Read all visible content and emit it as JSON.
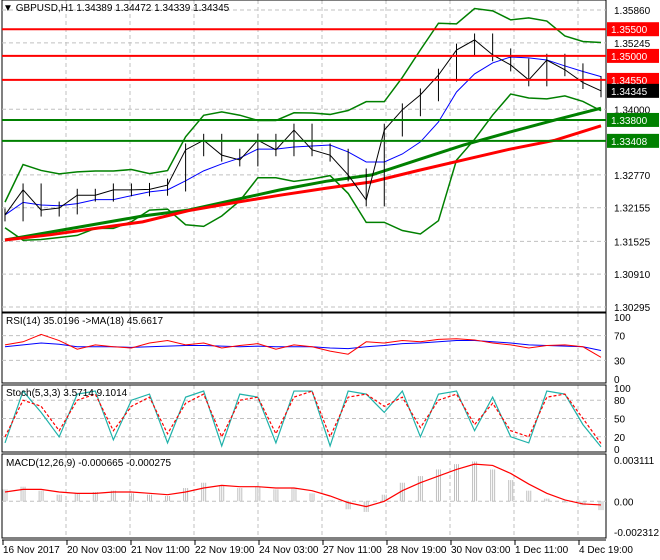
{
  "header": {
    "symbol": "GBPUSD,H1",
    "open": "1.34389",
    "high": "1.34472",
    "low": "1.34339",
    "close": "1.34345"
  },
  "colors": {
    "up_line": "#ff0000",
    "support_line": "#008000",
    "price_tag": "#000000",
    "ma_fast": "#008000",
    "ma_slow": "#ff0000",
    "bollinger": "#008000",
    "rsi": "#ff0000",
    "rsi_ma": "#0000ff",
    "stoch_main": "#20b2aa",
    "stoch_signal": "#ff0000",
    "macd_hist": "#c0c0c0",
    "macd_signal": "#ff0000"
  },
  "chart_data": [
    {
      "type": "line",
      "name_printed": "GBPUSD,H1",
      "ylim": [
        1.30295,
        1.3586
      ],
      "y_ticks": [
        "1.35860",
        "1.35245",
        "1.34000",
        "1.32770",
        "1.32155",
        "1.31525",
        "1.30910",
        "1.30295"
      ],
      "x_ticks": [
        "16 Nov 2017",
        "20 Nov 03:00",
        "21 Nov 11:00",
        "22 Nov 19:00",
        "24 Nov 03:00",
        "27 Nov 11:00",
        "28 Nov 19:00",
        "30 Nov 03:00",
        "1 Dec 11:00",
        "4 Dec 19:00"
      ],
      "closes": [
        1.3202,
        1.3249,
        1.3211,
        1.3215,
        1.3239,
        1.3239,
        1.3249,
        1.3249,
        1.325,
        1.3258,
        1.3324,
        1.3342,
        1.3314,
        1.3305,
        1.3342,
        1.3324,
        1.3361,
        1.3324,
        1.3314,
        1.3277,
        1.323,
        1.3361,
        1.3399,
        1.3427,
        1.3464,
        1.3511,
        1.353,
        1.3502,
        1.3483,
        1.3455,
        1.3492,
        1.3474,
        1.345,
        1.34345
      ],
      "ma_slow_green": [
        1.3155,
        1.317,
        1.3185,
        1.32,
        1.3211,
        1.323,
        1.3249,
        1.3265,
        1.3277,
        1.3305,
        1.3333,
        1.3357,
        1.338,
        1.3402
      ],
      "ma_slow_red": [
        1.3155,
        1.3165,
        1.3177,
        1.3189,
        1.321,
        1.3225,
        1.3239,
        1.3252,
        1.3264,
        1.3285,
        1.3305,
        1.3325,
        1.3342,
        1.3369
      ],
      "horizontal_levels": [
        {
          "value": "1.35500",
          "color": "#ff0000"
        },
        {
          "value": "1.35000",
          "color": "#ff0000"
        },
        {
          "value": "1.34550",
          "color": "#ff0000"
        },
        {
          "value": "1.33800",
          "color": "#008000"
        },
        {
          "value": "1.33408",
          "color": "#008000"
        }
      ],
      "current_price": "1.34345"
    },
    {
      "type": "line",
      "label": "RSI(14) 35.0196  ->MA(18) 45.6617",
      "ylim": [
        0,
        100
      ],
      "y_ticks": [
        "100",
        "70",
        "30",
        "0"
      ],
      "rsi": [
        55,
        60,
        72,
        62,
        48,
        55,
        52,
        50,
        58,
        62,
        55,
        58,
        50,
        54,
        57,
        48,
        55,
        52,
        45,
        40,
        60,
        58,
        62,
        60,
        64,
        65,
        63,
        58,
        55,
        50,
        54,
        55,
        52,
        35
      ],
      "rsi_ma": [
        52,
        55,
        58,
        56,
        52,
        52,
        52,
        51,
        52,
        53,
        54,
        54,
        53,
        52,
        53,
        52,
        52,
        52,
        50,
        49,
        52,
        54,
        57,
        58,
        60,
        62,
        62,
        60,
        58,
        55,
        54,
        53,
        52,
        46
      ]
    },
    {
      "type": "line",
      "label": "Stoch(5,3,3) 3.5714 9.1014",
      "ylim": [
        0,
        100
      ],
      "y_ticks": [
        "100",
        "80",
        "50",
        "20",
        "0"
      ],
      "main": [
        10,
        95,
        60,
        20,
        90,
        95,
        15,
        80,
        90,
        10,
        85,
        95,
        5,
        90,
        85,
        10,
        95,
        95,
        5,
        95,
        90,
        60,
        95,
        20,
        90,
        95,
        30,
        85,
        20,
        10,
        95,
        90,
        40,
        3.57
      ],
      "signal": [
        20,
        80,
        70,
        30,
        80,
        90,
        30,
        70,
        85,
        25,
        75,
        90,
        20,
        80,
        85,
        25,
        85,
        95,
        20,
        85,
        90,
        70,
        85,
        35,
        80,
        90,
        40,
        75,
        30,
        20,
        85,
        90,
        50,
        9.1
      ]
    },
    {
      "type": "bar",
      "label": "MACD(12,26,9) -0.000665 -0.000275",
      "ylim": [
        -0.002312,
        0.003111
      ],
      "y_ticks": [
        "0.003111",
        "0.00",
        "-0.002312"
      ],
      "hist": [
        0.0009,
        0.0011,
        0.0008,
        0.0005,
        0.0006,
        0.0007,
        0.0008,
        0.0006,
        0.0005,
        0.0004,
        0.001,
        0.0014,
        0.0012,
        0.001,
        0.0011,
        0.0009,
        0.001,
        0.0006,
        0.0001,
        -0.0006,
        -0.0008,
        0.0005,
        0.0014,
        0.0019,
        0.0024,
        0.0028,
        0.003,
        0.0024,
        0.0016,
        0.0008,
        0.0002,
        -0.0001,
        -0.0003,
        -0.000665
      ],
      "signal": [
        0.0007,
        0.0009,
        0.0009,
        0.0007,
        0.0006,
        0.0006,
        0.0007,
        0.0007,
        0.0006,
        0.0005,
        0.0007,
        0.001,
        0.0012,
        0.0011,
        0.0011,
        0.001,
        0.001,
        0.0008,
        0.0004,
        -0.0001,
        -0.0004,
        0.0,
        0.0008,
        0.0014,
        0.0019,
        0.0024,
        0.0028,
        0.0027,
        0.0021,
        0.0013,
        0.0006,
        0.0001,
        -0.0002,
        -0.000275
      ]
    }
  ]
}
